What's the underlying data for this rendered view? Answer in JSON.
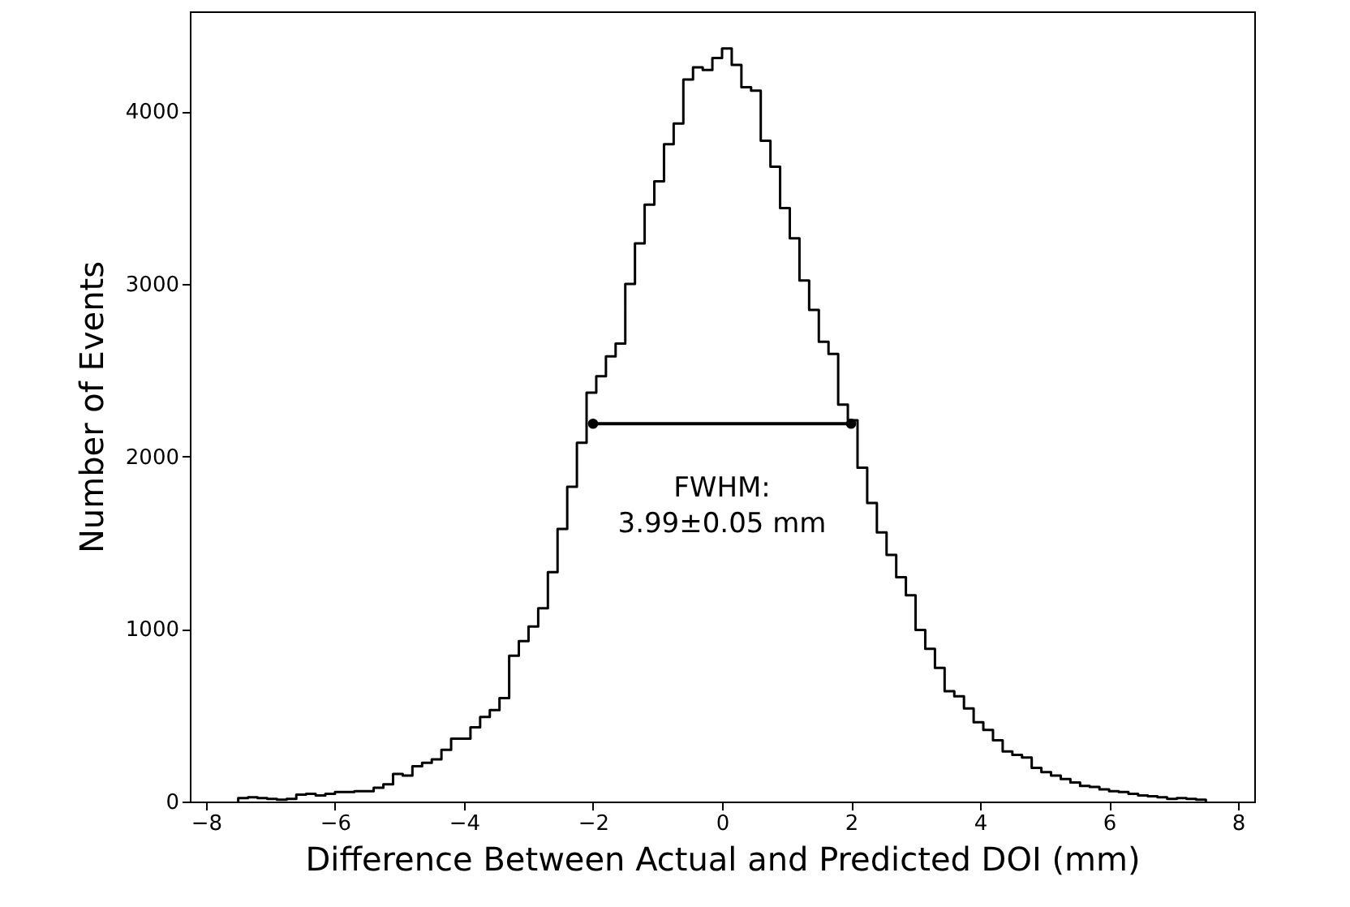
{
  "chart_data": {
    "type": "histogram",
    "xlabel": "Difference Between Actual and Predicted DOI (mm)",
    "ylabel": "Number of Events",
    "xlim": [
      -8.25,
      8.25
    ],
    "ylim": [
      0,
      4580
    ],
    "xticks": [
      {
        "value": -8,
        "label": "−8"
      },
      {
        "value": -6,
        "label": "−6"
      },
      {
        "value": -4,
        "label": "−4"
      },
      {
        "value": -2,
        "label": "−2"
      },
      0,
      2,
      4,
      6,
      8
    ],
    "yticks": [
      0,
      1000,
      2000,
      3000,
      4000
    ],
    "grid": false,
    "annotations": [
      "FWHM:\n3.99±0.05 mm"
    ],
    "series": [
      {
        "color": "#000000",
        "line_style": "solid",
        "bins": [
          -7.5,
          -7.35,
          -7.2,
          -7.05,
          -6.9,
          -6.75,
          -6.6,
          -6.45,
          -6.3,
          -6.15,
          -6.0,
          -5.85,
          -5.7,
          -5.55,
          -5.4,
          -5.25,
          -5.1,
          -4.95,
          -4.8,
          -4.65,
          -4.5,
          -4.35,
          -4.2,
          -4.05,
          -3.9,
          -3.75,
          -3.6,
          -3.45,
          -3.3,
          -3.15,
          -3.0,
          -2.85,
          -2.7,
          -2.55,
          -2.4,
          -2.25,
          -2.1,
          -1.95,
          -1.8,
          -1.65,
          -1.5,
          -1.35,
          -1.2,
          -1.05,
          -0.9,
          -0.75,
          -0.6,
          -0.45,
          -0.3,
          -0.15,
          0,
          0.15,
          0.3,
          0.45,
          0.6,
          0.75,
          0.9,
          1.05,
          1.2,
          1.35,
          1.5,
          1.65,
          1.8,
          1.95,
          2.1,
          2.25,
          2.4,
          2.55,
          2.7,
          2.85,
          3.0,
          3.15,
          3.3,
          3.45,
          3.6,
          3.75,
          3.9,
          4.05,
          4.2,
          4.35,
          4.5,
          4.65,
          4.8,
          4.95,
          5.1,
          5.25,
          5.4,
          5.55,
          5.7,
          5.85,
          6.0,
          6.15,
          6.3,
          6.45,
          6.6,
          6.75,
          6.9,
          7.05,
          7.2,
          7.35,
          7.5
        ],
        "values": [
          20,
          25,
          20,
          15,
          10,
          15,
          40,
          45,
          35,
          45,
          55,
          55,
          60,
          60,
          80,
          100,
          160,
          150,
          205,
          225,
          245,
          300,
          365,
          365,
          430,
          490,
          530,
          600,
          845,
          930,
          1015,
          1120,
          1330,
          1580,
          1825,
          2080,
          2370,
          2465,
          2580,
          2655,
          3000,
          3235,
          3460,
          3595,
          3810,
          3930,
          4185,
          4255,
          4240,
          4310,
          4365,
          4270,
          4140,
          4120,
          3830,
          3680,
          3440,
          3265,
          3020,
          2850,
          2665,
          2595,
          2300,
          2210,
          1935,
          1730,
          1560,
          1430,
          1300,
          1195,
          995,
          885,
          775,
          640,
          610,
          540,
          460,
          415,
          355,
          290,
          270,
          255,
          195,
          170,
          150,
          130,
          110,
          90,
          85,
          70,
          60,
          55,
          45,
          35,
          30,
          25,
          15,
          20,
          15,
          10
        ]
      },
      {
        "type": "line",
        "color": "#000000",
        "marker": "circle",
        "line_style": "solid",
        "x": [
          -2,
          2
        ],
        "values": [
          2190,
          2190
        ]
      }
    ]
  }
}
